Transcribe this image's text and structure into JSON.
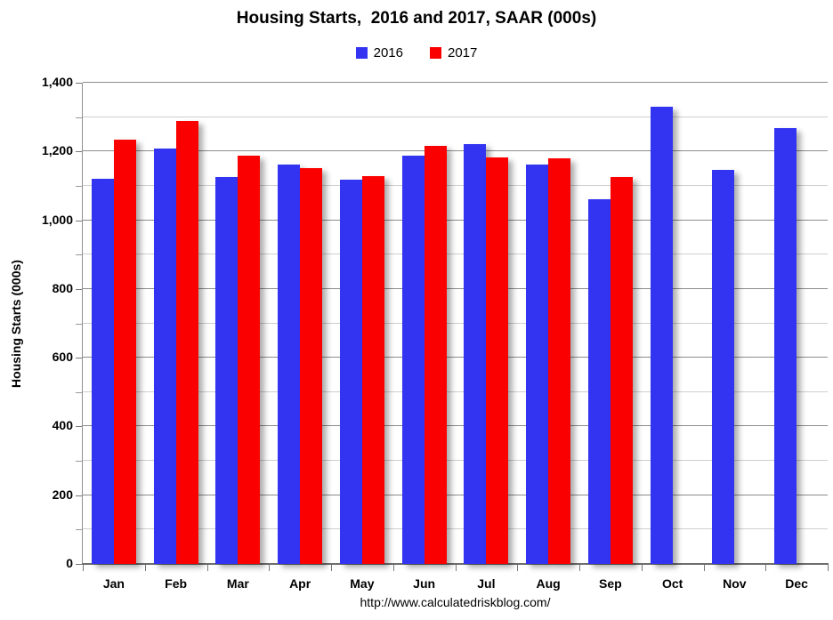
{
  "header": {
    "title": "Housing Starts,  2016 and 2017, SAAR (000s)"
  },
  "footer": {
    "url": "http://www.calculatedriskblog.com/"
  },
  "chart_data": {
    "type": "bar",
    "title": "Housing Starts,  2016 and 2017, SAAR (000s)",
    "xlabel": "",
    "ylabel": "Housing Starts (000s)",
    "categories": [
      "Jan",
      "Feb",
      "Mar",
      "Apr",
      "May",
      "Jun",
      "Jul",
      "Aug",
      "Sep",
      "Oct",
      "Nov",
      "Dec"
    ],
    "series": [
      {
        "name": "2016",
        "color": "#3333f2",
        "values": [
          1121,
          1209,
          1125,
          1162,
          1119,
          1189,
          1222,
          1163,
          1060,
          1330,
          1147,
          1268
        ]
      },
      {
        "name": "2017",
        "color": "#fb0000",
        "values": [
          1235,
          1288,
          1188,
          1152,
          1129,
          1216,
          1183,
          1179,
          1126,
          null,
          null,
          null
        ]
      }
    ],
    "ylim": [
      0,
      1400
    ],
    "grid": true,
    "grid_minor_step": 100,
    "grid_major_step": 200,
    "y_tick_labels": [
      "0",
      "200",
      "400",
      "600",
      "800",
      "1,000",
      "1,200",
      "1,400"
    ],
    "legend_position": "top"
  }
}
